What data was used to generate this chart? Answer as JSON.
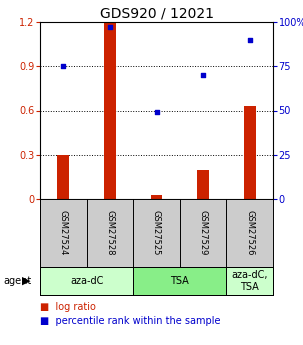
{
  "title": "GDS920 / 12021",
  "samples": [
    "GSM27524",
    "GSM27528",
    "GSM27525",
    "GSM27529",
    "GSM27526"
  ],
  "log_ratio": [
    0.3,
    1.19,
    0.03,
    0.2,
    0.63
  ],
  "percentile_rank": [
    75,
    97,
    49,
    70,
    90
  ],
  "bar_color": "#cc2200",
  "dot_color": "#0000cc",
  "ylim_left": [
    0,
    1.2
  ],
  "ylim_right": [
    0,
    100
  ],
  "yticks_left": [
    0,
    0.3,
    0.6,
    0.9,
    1.2
  ],
  "yticks_right": [
    0,
    25,
    50,
    75,
    100
  ],
  "ytick_labels_left": [
    "0",
    "0.3",
    "0.6",
    "0.9",
    "1.2"
  ],
  "ytick_labels_right": [
    "0",
    "25",
    "50",
    "75",
    "100%"
  ],
  "dotted_lines": [
    0.3,
    0.6,
    0.9
  ],
  "groups": [
    {
      "label": "aza-dC",
      "color": "#ccffcc",
      "span": [
        0,
        2
      ]
    },
    {
      "label": "TSA",
      "color": "#88ee88",
      "span": [
        2,
        4
      ]
    },
    {
      "label": "aza-dC,\nTSA",
      "color": "#ccffcc",
      "span": [
        4,
        5
      ]
    }
  ],
  "agent_label": "agent",
  "legend_bar_label": "log ratio",
  "legend_dot_label": "percentile rank within the sample",
  "title_fontsize": 10,
  "tick_fontsize": 7,
  "sample_fontsize": 6,
  "group_fontsize": 7,
  "legend_fontsize": 7,
  "background_color": "#ffffff",
  "bar_width": 0.25
}
